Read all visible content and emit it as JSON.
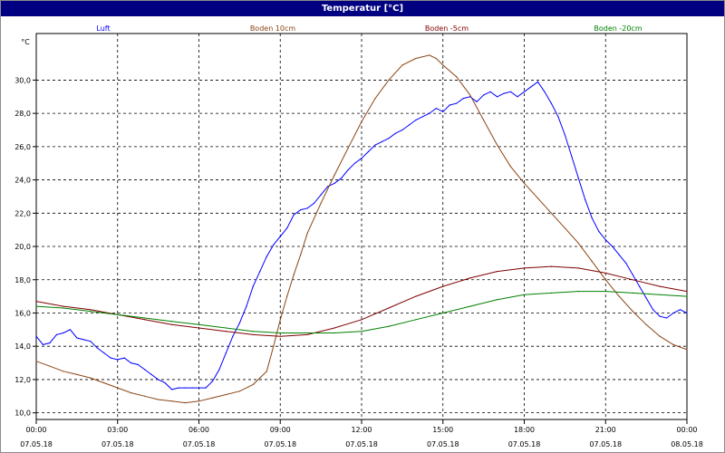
{
  "window": {
    "title": "Temperatur [°C]"
  },
  "chart_data": {
    "type": "line",
    "title": "Temperatur [°C]",
    "ylabel": "°C",
    "ylim": [
      9.6,
      32.8
    ],
    "y_ticks": [
      "10,0",
      "12,0",
      "14,0",
      "16,0",
      "18,0",
      "20,0",
      "22,0",
      "24,0",
      "26,0",
      "28,0",
      "30,0"
    ],
    "y_tick_values": [
      10,
      12,
      14,
      16,
      18,
      20,
      22,
      24,
      26,
      28,
      30
    ],
    "xlim": [
      0,
      24
    ],
    "x_tick_hours": [
      0,
      3,
      6,
      9,
      12,
      15,
      18,
      21,
      24
    ],
    "x_tick_times": [
      "00:00",
      "03:00",
      "06:00",
      "09:00",
      "12:00",
      "15:00",
      "18:00",
      "21:00",
      "00:00"
    ],
    "x_tick_dates": [
      "07.05.18",
      "07.05.18",
      "07.05.18",
      "07.05.18",
      "07.05.18",
      "07.05.18",
      "07.05.18",
      "07.05.18",
      "08.05.18"
    ],
    "grid": true,
    "legend_position": "top",
    "series": [
      {
        "name": "Luft",
        "color": "#0000ff",
        "points": [
          [
            0,
            14.6
          ],
          [
            0.25,
            14.1
          ],
          [
            0.5,
            14.2
          ],
          [
            0.75,
            14.7
          ],
          [
            1.0,
            14.8
          ],
          [
            1.25,
            15.0
          ],
          [
            1.5,
            14.5
          ],
          [
            1.75,
            14.4
          ],
          [
            2.0,
            14.3
          ],
          [
            2.25,
            13.9
          ],
          [
            2.5,
            13.6
          ],
          [
            2.75,
            13.3
          ],
          [
            3.0,
            13.2
          ],
          [
            3.25,
            13.3
          ],
          [
            3.5,
            13.0
          ],
          [
            3.75,
            12.9
          ],
          [
            4.0,
            12.6
          ],
          [
            4.25,
            12.3
          ],
          [
            4.5,
            12.0
          ],
          [
            4.75,
            11.8
          ],
          [
            5.0,
            11.4
          ],
          [
            5.25,
            11.5
          ],
          [
            5.5,
            11.5
          ],
          [
            5.75,
            11.5
          ],
          [
            6.0,
            11.5
          ],
          [
            6.25,
            11.5
          ],
          [
            6.5,
            11.9
          ],
          [
            6.75,
            12.6
          ],
          [
            7.0,
            13.6
          ],
          [
            7.25,
            14.6
          ],
          [
            7.5,
            15.4
          ],
          [
            7.75,
            16.4
          ],
          [
            8.0,
            17.6
          ],
          [
            8.25,
            18.5
          ],
          [
            8.5,
            19.4
          ],
          [
            8.75,
            20.1
          ],
          [
            9.0,
            20.6
          ],
          [
            9.25,
            21.1
          ],
          [
            9.5,
            21.9
          ],
          [
            9.75,
            22.2
          ],
          [
            10.0,
            22.3
          ],
          [
            10.25,
            22.6
          ],
          [
            10.5,
            23.1
          ],
          [
            10.75,
            23.6
          ],
          [
            11.0,
            23.8
          ],
          [
            11.25,
            24.1
          ],
          [
            11.5,
            24.6
          ],
          [
            11.75,
            25.0
          ],
          [
            12.0,
            25.3
          ],
          [
            12.25,
            25.7
          ],
          [
            12.5,
            26.1
          ],
          [
            12.75,
            26.3
          ],
          [
            13.0,
            26.5
          ],
          [
            13.25,
            26.8
          ],
          [
            13.5,
            27.0
          ],
          [
            13.75,
            27.3
          ],
          [
            14.0,
            27.6
          ],
          [
            14.25,
            27.8
          ],
          [
            14.5,
            28.0
          ],
          [
            14.75,
            28.3
          ],
          [
            15.0,
            28.1
          ],
          [
            15.25,
            28.5
          ],
          [
            15.5,
            28.6
          ],
          [
            15.75,
            28.9
          ],
          [
            16.0,
            29.0
          ],
          [
            16.25,
            28.7
          ],
          [
            16.5,
            29.1
          ],
          [
            16.75,
            29.3
          ],
          [
            17.0,
            29.0
          ],
          [
            17.25,
            29.2
          ],
          [
            17.5,
            29.3
          ],
          [
            17.75,
            29.0
          ],
          [
            18.0,
            29.3
          ],
          [
            18.25,
            29.6
          ],
          [
            18.5,
            29.9
          ],
          [
            18.75,
            29.3
          ],
          [
            19.0,
            28.6
          ],
          [
            19.25,
            27.8
          ],
          [
            19.5,
            26.7
          ],
          [
            19.75,
            25.4
          ],
          [
            20.0,
            24.1
          ],
          [
            20.25,
            22.8
          ],
          [
            20.5,
            21.7
          ],
          [
            20.75,
            20.9
          ],
          [
            21.0,
            20.4
          ],
          [
            21.25,
            20.0
          ],
          [
            21.5,
            19.5
          ],
          [
            21.75,
            19.0
          ],
          [
            22.0,
            18.3
          ],
          [
            22.25,
            17.6
          ],
          [
            22.5,
            16.9
          ],
          [
            22.75,
            16.2
          ],
          [
            23.0,
            15.8
          ],
          [
            23.25,
            15.7
          ],
          [
            23.5,
            16.0
          ],
          [
            23.75,
            16.2
          ],
          [
            24.0,
            16.0
          ]
        ]
      },
      {
        "name": "Boden 10cm",
        "color": "#8b4513",
        "points": [
          [
            0,
            13.1
          ],
          [
            0.5,
            12.8
          ],
          [
            1.0,
            12.5
          ],
          [
            1.5,
            12.3
          ],
          [
            2.0,
            12.1
          ],
          [
            2.5,
            11.8
          ],
          [
            3.0,
            11.5
          ],
          [
            3.5,
            11.2
          ],
          [
            4.0,
            11.0
          ],
          [
            4.5,
            10.8
          ],
          [
            5.0,
            10.7
          ],
          [
            5.5,
            10.6
          ],
          [
            6.0,
            10.7
          ],
          [
            6.5,
            10.9
          ],
          [
            7.0,
            11.1
          ],
          [
            7.5,
            11.3
          ],
          [
            8.0,
            11.7
          ],
          [
            8.5,
            12.5
          ],
          [
            8.75,
            14.0
          ],
          [
            9.0,
            15.6
          ],
          [
            9.25,
            17.0
          ],
          [
            9.5,
            18.3
          ],
          [
            9.75,
            19.5
          ],
          [
            10.0,
            20.8
          ],
          [
            10.5,
            22.6
          ],
          [
            11.0,
            24.3
          ],
          [
            11.5,
            25.9
          ],
          [
            12.0,
            27.5
          ],
          [
            12.5,
            28.9
          ],
          [
            13.0,
            30.0
          ],
          [
            13.5,
            30.9
          ],
          [
            14.0,
            31.3
          ],
          [
            14.5,
            31.5
          ],
          [
            14.75,
            31.3
          ],
          [
            15.0,
            30.9
          ],
          [
            15.5,
            30.2
          ],
          [
            16.0,
            29.1
          ],
          [
            16.5,
            27.6
          ],
          [
            17.0,
            26.1
          ],
          [
            17.5,
            24.8
          ],
          [
            18.0,
            23.8
          ],
          [
            18.5,
            22.9
          ],
          [
            19.0,
            22.0
          ],
          [
            19.5,
            21.1
          ],
          [
            20.0,
            20.2
          ],
          [
            20.5,
            19.1
          ],
          [
            21.0,
            18.0
          ],
          [
            21.5,
            17.0
          ],
          [
            22.0,
            16.1
          ],
          [
            22.5,
            15.3
          ],
          [
            23.0,
            14.6
          ],
          [
            23.5,
            14.1
          ],
          [
            24.0,
            13.8
          ]
        ]
      },
      {
        "name": "Boden -5cm",
        "color": "#800000",
        "points": [
          [
            0,
            16.7
          ],
          [
            1.0,
            16.4
          ],
          [
            2.0,
            16.2
          ],
          [
            3.0,
            15.9
          ],
          [
            4.0,
            15.6
          ],
          [
            5.0,
            15.3
          ],
          [
            6.0,
            15.1
          ],
          [
            7.0,
            14.9
          ],
          [
            8.0,
            14.7
          ],
          [
            9.0,
            14.6
          ],
          [
            10.0,
            14.7
          ],
          [
            11.0,
            15.1
          ],
          [
            12.0,
            15.6
          ],
          [
            13.0,
            16.3
          ],
          [
            14.0,
            17.0
          ],
          [
            15.0,
            17.6
          ],
          [
            16.0,
            18.1
          ],
          [
            17.0,
            18.5
          ],
          [
            18.0,
            18.7
          ],
          [
            19.0,
            18.8
          ],
          [
            20.0,
            18.7
          ],
          [
            21.0,
            18.4
          ],
          [
            22.0,
            18.0
          ],
          [
            23.0,
            17.6
          ],
          [
            24.0,
            17.3
          ]
        ]
      },
      {
        "name": "Boden -20cm",
        "color": "#008000",
        "points": [
          [
            0,
            16.4
          ],
          [
            1.0,
            16.3
          ],
          [
            2.0,
            16.1
          ],
          [
            3.0,
            15.9
          ],
          [
            4.0,
            15.7
          ],
          [
            5.0,
            15.5
          ],
          [
            6.0,
            15.3
          ],
          [
            7.0,
            15.1
          ],
          [
            8.0,
            14.9
          ],
          [
            9.0,
            14.8
          ],
          [
            10.0,
            14.8
          ],
          [
            11.0,
            14.8
          ],
          [
            12.0,
            14.9
          ],
          [
            13.0,
            15.2
          ],
          [
            14.0,
            15.6
          ],
          [
            15.0,
            16.0
          ],
          [
            16.0,
            16.4
          ],
          [
            17.0,
            16.8
          ],
          [
            18.0,
            17.1
          ],
          [
            19.0,
            17.2
          ],
          [
            20.0,
            17.3
          ],
          [
            21.0,
            17.3
          ],
          [
            22.0,
            17.2
          ],
          [
            23.0,
            17.1
          ],
          [
            24.0,
            17.0
          ]
        ]
      }
    ]
  }
}
